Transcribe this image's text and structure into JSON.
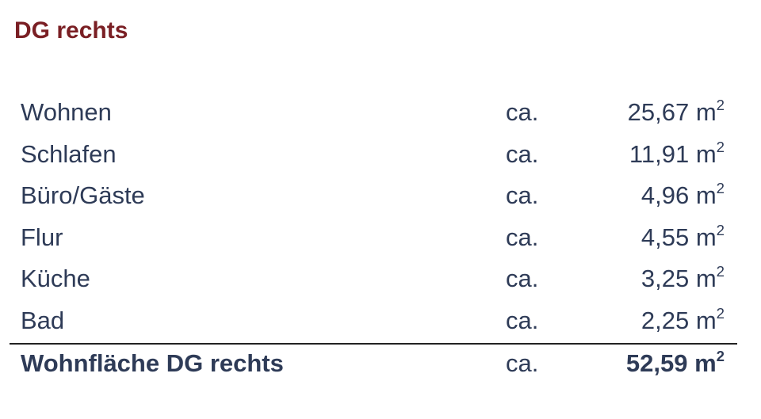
{
  "title": "DG rechts",
  "unit": "m",
  "unit_exponent": "2",
  "rows": [
    {
      "label": "Wohnen",
      "prefix": "ca.",
      "value": "25,67"
    },
    {
      "label": "Schlafen",
      "prefix": "ca.",
      "value": "11,91"
    },
    {
      "label": "Büro/Gäste",
      "prefix": "ca.",
      "value": "4,96"
    },
    {
      "label": "Flur",
      "prefix": "ca.",
      "value": "4,55"
    },
    {
      "label": "Küche",
      "prefix": "ca.",
      "value": "3,25"
    },
    {
      "label": "Bad",
      "prefix": "ca.",
      "value": "2,25"
    }
  ],
  "total": {
    "label": "Wohnfläche DG rechts",
    "prefix": "ca.",
    "value": "52,59"
  },
  "colors": {
    "title": "#7a1f24",
    "text": "#2e3b57"
  }
}
